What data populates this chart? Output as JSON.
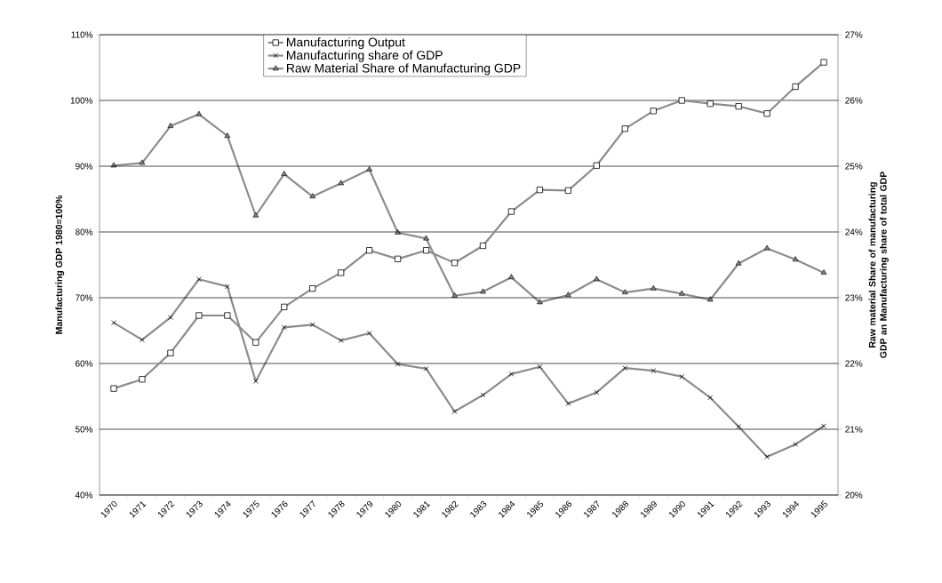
{
  "chart_data": {
    "type": "line",
    "categories": [
      "1970",
      "1971",
      "1972",
      "1973",
      "1974",
      "1975",
      "1976",
      "1977",
      "1978",
      "1979",
      "1980",
      "1981",
      "1982",
      "1983",
      "1984",
      "1985",
      "1986",
      "1987",
      "1988",
      "1989",
      "1990",
      "1991",
      "1992",
      "1993",
      "1994",
      "1995"
    ],
    "ylabel": "Manufacturing GDP 1980=100%",
    "y2label": "Raw material Share of manufacturing GDP an Manufacturing share of total GDP",
    "ylim": [
      40,
      110
    ],
    "yticks": [
      {
        "value": 40,
        "label": "40%"
      },
      {
        "value": 50,
        "label": "50%"
      },
      {
        "value": 60,
        "label": "60%"
      },
      {
        "value": 70,
        "label": "70%"
      },
      {
        "value": 80,
        "label": "80%"
      },
      {
        "value": 90,
        "label": "90%"
      },
      {
        "value": 100,
        "label": "100%"
      },
      {
        "value": 110,
        "label": "110%"
      }
    ],
    "y2lim": [
      20,
      27
    ],
    "y2ticks": [
      {
        "value": 20,
        "label": "20%"
      },
      {
        "value": 21,
        "label": "21%"
      },
      {
        "value": 22,
        "label": "22%"
      },
      {
        "value": 23,
        "label": "23%"
      },
      {
        "value": 24,
        "label": "24%"
      },
      {
        "value": 25,
        "label": "25%"
      },
      {
        "value": 26,
        "label": "26%"
      },
      {
        "value": 27,
        "label": "27%"
      }
    ],
    "grid": "y",
    "legend": "top",
    "line_style": "solid",
    "series": [
      {
        "name": "Manufacturing Output",
        "color": "#8c8c8c",
        "marker": "square",
        "values": [
          56.2,
          57.6,
          61.6,
          67.3,
          67.3,
          63.2,
          68.6,
          71.4,
          73.8,
          77.2,
          75.9,
          77.2,
          75.3,
          77.9,
          83.1,
          86.4,
          86.3,
          90.1,
          95.7,
          98.4,
          100.0,
          99.5,
          99.1,
          98.0,
          102.1,
          105.8
        ]
      },
      {
        "name": "Manufacturing share of GDP",
        "color": "#8c8c8c",
        "marker": "cross",
        "axis": "y2",
        "values": [
          22.62,
          22.36,
          22.7,
          23.28,
          23.17,
          21.73,
          22.55,
          22.59,
          22.35,
          22.46,
          21.99,
          21.92,
          21.27,
          21.52,
          21.84,
          21.95,
          21.39,
          21.56,
          21.93,
          21.89,
          21.8,
          21.48,
          21.04,
          20.58,
          20.77,
          21.05
        ]
      },
      {
        "name": "Raw Material Share of Manufacturing GDP",
        "color": "#8c8c8c",
        "marker": "triangle",
        "axis": "y2",
        "values": [
          25.01,
          25.05,
          25.61,
          25.79,
          25.46,
          24.25,
          24.88,
          24.54,
          24.74,
          24.95,
          23.99,
          23.9,
          23.03,
          23.09,
          23.31,
          22.93,
          23.04,
          23.28,
          23.08,
          23.14,
          23.06,
          22.97,
          23.52,
          23.75,
          23.58,
          23.38
        ]
      }
    ]
  }
}
